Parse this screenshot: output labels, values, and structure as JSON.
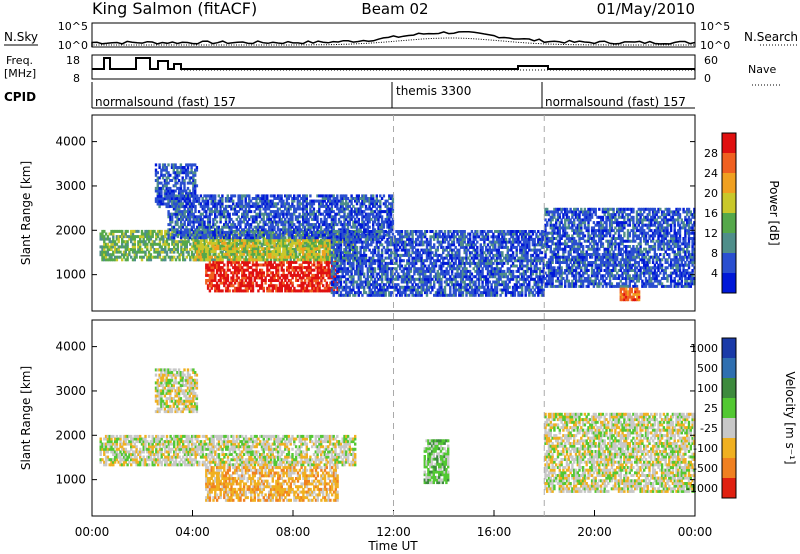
{
  "header": {
    "station": "King Salmon (fitACF)",
    "beam": "Beam 02",
    "date": "01/May/2010"
  },
  "top_panel": {
    "nsky_label": "N.Sky",
    "nsky_ticks": [
      "10^5",
      "10^0"
    ],
    "nsearch_label": "N.Search",
    "nsearch_ticks": [
      "10^5",
      "10^0"
    ],
    "freq_label": "Freq.",
    "freq_unit": "[MHz]",
    "freq_ticks": [
      "18",
      "8"
    ],
    "nave_label": "Nave",
    "nave_ticks": [
      "60",
      "0"
    ],
    "cpid_label": "CPID",
    "cpid_segments": [
      {
        "label": "normalsound (fast) 157",
        "start_hour": 0,
        "end_hour": 12
      },
      {
        "label": "themis 3300",
        "start_hour": 12,
        "end_hour": 18
      },
      {
        "label": "normalsound (fast) 157",
        "start_hour": 18,
        "end_hour": 24
      }
    ]
  },
  "chart_data": [
    {
      "type": "heatmap",
      "name": "power",
      "ylabel": "Slant Range [km]",
      "xlabel": "",
      "ylim": [
        180,
        4600
      ],
      "yticks": [
        "1000",
        "2000",
        "3000",
        "4000"
      ],
      "xlim": [
        0,
        24
      ],
      "colorbar_label": "Power [dB]",
      "colorbar_ticks": [
        "4",
        "8",
        "12",
        "16",
        "20",
        "24",
        "28"
      ],
      "colors": [
        "#0018d8",
        "#2a4fd0",
        "#4f8e8a",
        "#55a84a",
        "#c9c82a",
        "#f0a020",
        "#f06020",
        "#e01010"
      ],
      "blobs": [
        {
          "t0": 0.3,
          "t1": 10.5,
          "r0": 1300,
          "r1": 2000,
          "level": 3
        },
        {
          "t0": 4.5,
          "t1": 9.8,
          "r0": 600,
          "r1": 1300,
          "level": 7
        },
        {
          "t0": 4.0,
          "t1": 9.5,
          "r0": 1300,
          "r1": 1800,
          "level": 4
        },
        {
          "t0": 2.5,
          "t1": 4.2,
          "r0": 2500,
          "r1": 3500,
          "level": 1
        },
        {
          "t0": 3.0,
          "t1": 12.0,
          "r0": 1800,
          "r1": 2800,
          "level": 1
        },
        {
          "t0": 9.5,
          "t1": 18.0,
          "r0": 500,
          "r1": 2000,
          "level": 1
        },
        {
          "t0": 18.0,
          "t1": 24.0,
          "r0": 700,
          "r1": 2500,
          "level": 1
        },
        {
          "t0": 21.0,
          "t1": 21.8,
          "r0": 400,
          "r1": 700,
          "level": 6
        }
      ]
    },
    {
      "type": "heatmap",
      "name": "velocity",
      "ylabel": "Slant Range [km]",
      "xlabel": "Time UT",
      "ylim": [
        180,
        4600
      ],
      "yticks": [
        "1000",
        "2000",
        "3000",
        "4000"
      ],
      "xlim": [
        0,
        24
      ],
      "xticks": [
        "00:00",
        "04:00",
        "08:00",
        "12:00",
        "16:00",
        "20:00",
        "00:00"
      ],
      "colorbar_label": "Velocity [m s⁻¹]",
      "colorbar_ticks": [
        "1000",
        "500",
        "100",
        "25",
        "-25",
        "-100",
        "-500",
        "-1000"
      ],
      "colors": [
        "#1a3aa8",
        "#2f6fb0",
        "#3d8a3d",
        "#52c832",
        "#c8c8c8",
        "#f0b020",
        "#f08020",
        "#e02010"
      ],
      "blobs": [
        {
          "t0": 0.3,
          "t1": 10.5,
          "r0": 1300,
          "r1": 2000,
          "level": 4
        },
        {
          "t0": 4.5,
          "t1": 9.8,
          "r0": 500,
          "r1": 1300,
          "level": 5
        },
        {
          "t0": 13.2,
          "t1": 14.2,
          "r0": 900,
          "r1": 1900,
          "level": 3
        },
        {
          "t0": 18.0,
          "t1": 24.0,
          "r0": 700,
          "r1": 2500,
          "level": 4
        },
        {
          "t0": 2.5,
          "t1": 4.2,
          "r0": 2500,
          "r1": 3500,
          "level": 4
        }
      ]
    }
  ]
}
